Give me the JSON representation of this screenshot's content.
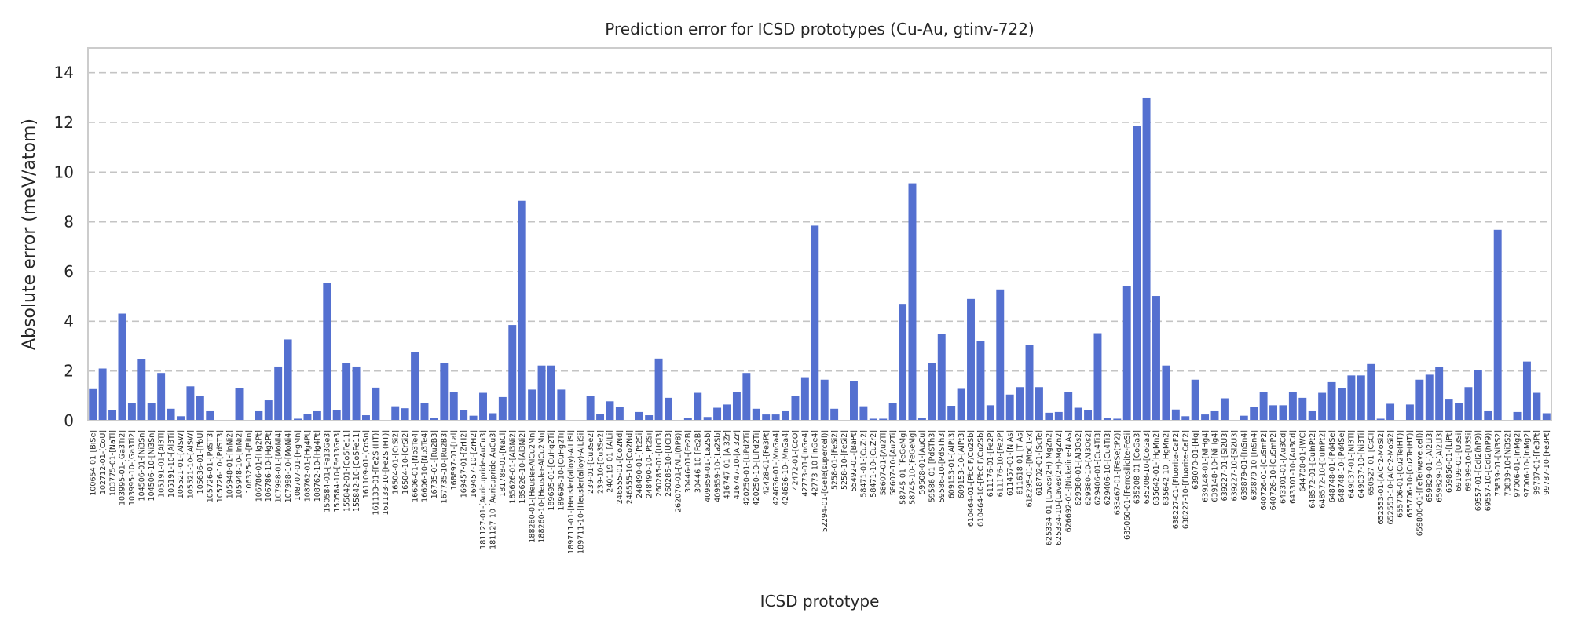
{
  "chart_data": {
    "type": "bar",
    "title": "Prediction error for ICSD prototypes (Cu-Au, gtinv-722)",
    "xlabel": "ICSD prototype",
    "ylabel": "Absolute error (meV/atom)",
    "ylim": [
      0,
      15
    ],
    "yticks": [
      0,
      2,
      4,
      6,
      8,
      10,
      12,
      14
    ],
    "grid": "horizontal dashed",
    "bar_color": "#5470d0",
    "categories": [
      "100654-01-[BiSe]",
      "102712-01-[CoU]",
      "103775-01-[NaTl]",
      "103995-01-[Ga3Ti2]",
      "103995-10-[Ga3Ti2]",
      "104506-01-[Ni3Sn]",
      "104506-10-[Ni3Sn]",
      "105191-01-[Al3Ti]",
      "105191-10-[Al3Ti]",
      "105521-01-[AlSW]",
      "105521-10-[AlSW]",
      "105636-01-[PbU]",
      "105726-01-[PdST3]",
      "105726-10-[PdST3]",
      "105948-01-[InNi2]",
      "105948-10-[InNi2]",
      "106325-01-[BiIn]",
      "106786-01-[Hg2Pt]",
      "106786-10-[Hg2Pt]",
      "107998-01-[MoNi4]",
      "107998-10-[MoNi4]",
      "108707-01-[HgMn]",
      "108762-01-[Hg4Pt]",
      "108762-10-[Hg4Pt]",
      "150584-01-[Fe13Ge3]",
      "150584-10-[Fe13Ge3]",
      "155842-01-[Co5Fe11]",
      "155842-10-[Co5Fe11]",
      "161109-01-[CoSn]",
      "161133-01-[Fe2Si(HT)]",
      "161133-10-[Fe2Si(HT)]",
      "16504-01-[CrSi2]",
      "16504-10-[CrSi2]",
      "16606-01-[Nb3Te4]",
      "16606-10-[Nb3Te4]",
      "16735-01-[Ru2B3]",
      "167735-10-[Ru2B3]",
      "168897-01-[Lal]",
      "169457-01-[ZrH2]",
      "169457-10-[ZrH2]",
      "181127-01-[Auricupride-AuCu3]",
      "181127-10-[Auricupride-AuCu3]",
      "181788-01-[NaCl]",
      "185626-01-[Al3Ni2]",
      "185626-10-[Al3Ni2]",
      "188260-01-[Heusler-AlCu2Mn]",
      "188260-10-[Heusler-AlCu2Mn]",
      "189695-01-[CuHg2Ti]",
      "189695-10-[CuHg2Ti]",
      "189711-01-[Heusler(alloy)-AlLiSi]",
      "189711-10-[Heusler(alloy)-AlLiSi]",
      "239-01-[Cu3Se2]",
      "239-10-[Cu3Se2]",
      "240119-01-[AlLi]",
      "246555-01-[Co2Nd]",
      "246555-10-[Co2Nd]",
      "248490-01-[Pt2Si]",
      "248490-10-[Pt2Si]",
      "260285-01-[UCl3]",
      "260285-10-[UCl3]",
      "262070-01-[AlLi(hP8)]",
      "30446-01-[Fe2B]",
      "30446-10-[Fe2B]",
      "409859-01-[La2Sb]",
      "409859-10-[La2Sb]",
      "416747-01-[Al3Zr]",
      "416747-10-[Al3Zr]",
      "420250-01-[LiPd2Ti]",
      "420250-10-[LiPd2Ti]",
      "42428-01-[Fe3Pt]",
      "424636-01-[MnGa4]",
      "424636-10-[MnGa4]",
      "42472-01-[CoO]",
      "42773-01-[InGe4]",
      "42773-10-[InGe4]",
      "52294-01-[GeTe(supercell)]",
      "5258-01-[FeSi2]",
      "5258-10-[FeSi2]",
      "55492-01-[BaPt]",
      "58471-01-[CuZr2]",
      "58471-10-[CuZr2]",
      "58607-01-[Au2Ti]",
      "58607-10-[Au2Ti]",
      "58745-01-[FeGeMg]",
      "58745-10-[FeGeMg]",
      "59508-01-[AuCu]",
      "59586-01-[PdSTh3]",
      "59586-10-[PdSTh3]",
      "609153-01-[AlPt3]",
      "609153-10-[AlPt3]",
      "610464-01-[PbClF/Cu2Sb]",
      "610464-10-[PbClF/Cu2Sb]",
      "611176-01-[Fe2P]",
      "611176-10-[Fe2P]",
      "611457-01-[NiAs]",
      "611618-01-[TlAs]",
      "618295-01-[MoC1-x]",
      "618702-01-[ScTe]",
      "625334-01-[Laves(2H)-MgZn2]",
      "625334-10-[Laves(2H)-MgZn2]",
      "626692-01-[Nickeline-NiAs]",
      "629380-01-[Al3Os2]",
      "629380-10-[Al3Os2]",
      "629406-01-[Cu4Ti3]",
      "629406-10-[Cu4Ti3]",
      "633467-01-[FeSe(tP2)]",
      "635060-01-[Ferrosilicite-FeSi]",
      "635208-01-[CoGa3]",
      "635208-10-[CoGa3]",
      "635642-01-[HgMn2]",
      "635642-10-[HgMn2]",
      "638227-01-[Fluorite-CaF2]",
      "638227-10-[Fluorite-CaF2]",
      "639070-01-[Hg]",
      "639148-01-[NiHg4]",
      "639148-10-[NiHg4]",
      "639227-01-[Si2U3]",
      "639227-10-[Si2U3]",
      "639879-01-[InSn4]",
      "639879-10-[InSn4]",
      "640726-01-[CuSmP2]",
      "640726-10-[CuSmP2]",
      "643301-01-[Au3Cd]",
      "643301-10-[Au3Cd]",
      "644708-01-[WC]",
      "648572-01-[CuInPt2]",
      "648572-10-[CuInPt2]",
      "648748-01-[Pd4Se]",
      "648748-10-[Pd4Se]",
      "649037-01-[Ni3Ti]",
      "649037-10-[Ni3Ti]",
      "650527-01-[CsCl]",
      "652553-01-[AlCr2-MoSi2]",
      "652553-10-[AlCr2-MoSi2]",
      "655706-01-[Cu2Te(HT)]",
      "655706-10-[Cu2Te(HT)]",
      "659806-01-[FeTe(wave.cell)]",
      "659829-01-[Al2Li3]",
      "659829-10-[Al2Li3]",
      "659856-01-[LiPt]",
      "69199-01-[U3Si]",
      "69199-10-[U3Si]",
      "69557-01-[CdI2(hP9)]",
      "69557-10-[CdI2(hP9)]",
      "73839-01-[Ni3S2]",
      "73839-10-[Ni3S2]",
      "97006-01-[InMg2]",
      "97006-10-[InMg2]",
      "99787-01-[Fe3Pt]",
      "99787-10-[Fe3Pt]"
    ],
    "values": [
      1.27,
      2.1,
      0.42,
      4.31,
      0.72,
      2.49,
      0.7,
      1.92,
      0.48,
      0.18,
      1.38,
      1.0,
      0.38,
      0.02,
      0.02,
      1.32,
      0.02,
      0.38,
      0.82,
      2.18,
      3.27,
      0.08,
      0.27,
      0.38,
      5.55,
      0.42,
      2.32,
      2.18,
      0.22,
      1.33,
      0.02,
      0.58,
      0.5,
      2.75,
      0.7,
      0.12,
      2.32,
      1.15,
      0.42,
      0.2,
      1.12,
      0.3,
      0.95,
      3.85,
      8.85,
      1.25,
      2.22,
      2.22,
      1.25,
      0.02,
      0.02,
      0.98,
      0.28,
      0.78,
      0.55,
      0.02,
      0.35,
      0.22,
      2.5,
      0.92,
      0.02,
      0.1,
      1.12,
      0.15,
      0.52,
      0.65,
      1.15,
      1.92,
      0.48,
      0.25,
      0.25,
      0.38,
      1.0,
      1.75,
      7.85,
      1.65,
      0.48,
      0.02,
      1.58,
      0.58,
      0.08,
      0.08,
      0.7,
      4.7,
      9.55,
      0.1,
      2.32,
      3.5,
      0.6,
      1.28,
      4.9,
      3.22,
      0.62,
      5.28,
      1.05,
      1.35,
      3.05,
      1.35,
      0.32,
      0.35,
      1.15,
      0.52,
      0.42,
      3.52,
      0.12,
      0.08,
      5.42,
      11.85,
      12.98,
      5.02,
      2.22,
      0.45,
      0.18,
      1.65,
      0.25,
      0.38,
      0.9,
      0.02,
      0.2,
      0.55,
      1.15,
      0.62,
      0.62,
      1.15,
      0.92,
      0.38,
      1.12,
      1.55,
      1.3,
      1.82,
      1.82,
      2.28,
      0.08,
      0.68,
      0.02,
      0.65,
      1.65,
      1.85,
      2.15,
      0.85,
      0.72,
      1.35,
      2.05,
      0.38,
      7.68,
      0.02,
      0.35,
      2.38,
      1.12,
      0.3
    ]
  }
}
